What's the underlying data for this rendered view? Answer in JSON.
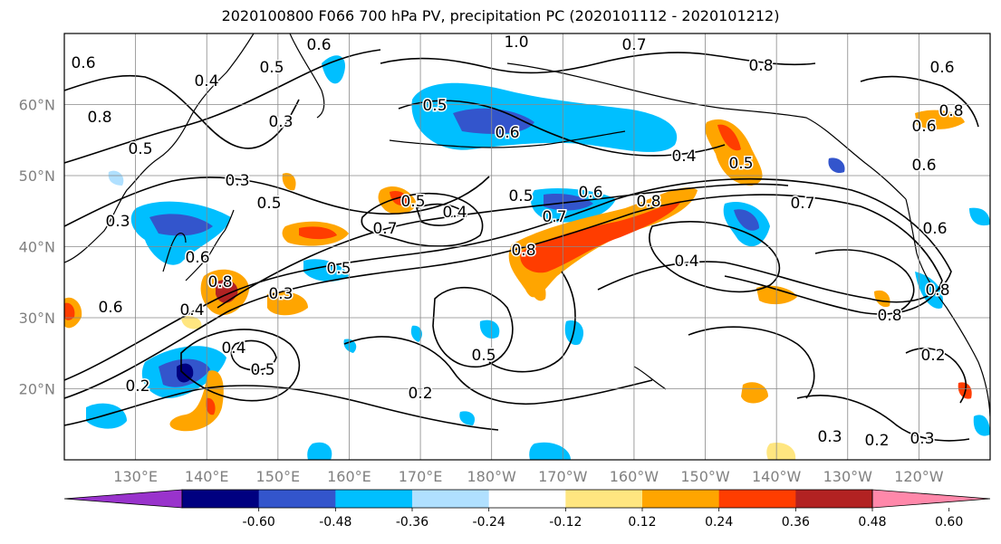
{
  "title": "2020100800 F066 700 hPa PV, precipitation PC (2020101112 - 2020101212)",
  "map": {
    "lat_labels": [
      {
        "text": "60°N",
        "lat": 60
      },
      {
        "text": "50°N",
        "lat": 50
      },
      {
        "text": "40°N",
        "lat": 40
      },
      {
        "text": "30°N",
        "lat": 30
      },
      {
        "text": "20°N",
        "lat": 20
      }
    ],
    "lon_labels": [
      {
        "text": "130°E",
        "lon": 130
      },
      {
        "text": "140°E",
        "lon": 140
      },
      {
        "text": "150°E",
        "lon": 150
      },
      {
        "text": "160°E",
        "lon": 160
      },
      {
        "text": "170°E",
        "lon": 170
      },
      {
        "text": "180°W",
        "lon": 180
      },
      {
        "text": "170°W",
        "lon": 190
      },
      {
        "text": "160°W",
        "lon": 200
      },
      {
        "text": "150°W",
        "lon": 210
      },
      {
        "text": "140°W",
        "lon": 220
      },
      {
        "text": "130°W",
        "lon": 230
      },
      {
        "text": "120°W",
        "lon": 240
      }
    ],
    "lon_range": [
      120,
      250
    ],
    "lat_range": [
      10,
      70
    ],
    "tick_label_color": "#808080"
  },
  "pv_contour_labels": [
    "0.2",
    "0.3",
    "0.4",
    "0.5",
    "0.6",
    "0.7",
    "0.8",
    "1.0"
  ],
  "colorbar": {
    "tick_labels": [
      "-0.60",
      "-0.48",
      "-0.36",
      "-0.24",
      "-0.12",
      "0.12",
      "0.24",
      "0.36",
      "0.48",
      "0.60"
    ],
    "colors": [
      "#9933cc",
      "#000080",
      "#3355cc",
      "#00bfff",
      "#b0e0ff",
      "#ffffff",
      "#ffe680",
      "#ffa500",
      "#ff3d00",
      "#b22222",
      "#ff88aa"
    ]
  },
  "pc_colors": {
    "neg_strong": "#000080",
    "neg_mid": "#3355cc",
    "neg": "#00bfff",
    "neg_light": "#b0e0ff",
    "pos_light": "#ffe680",
    "pos": "#ffa500",
    "pos_mid": "#ff3d00",
    "pos_strong": "#b22222"
  }
}
